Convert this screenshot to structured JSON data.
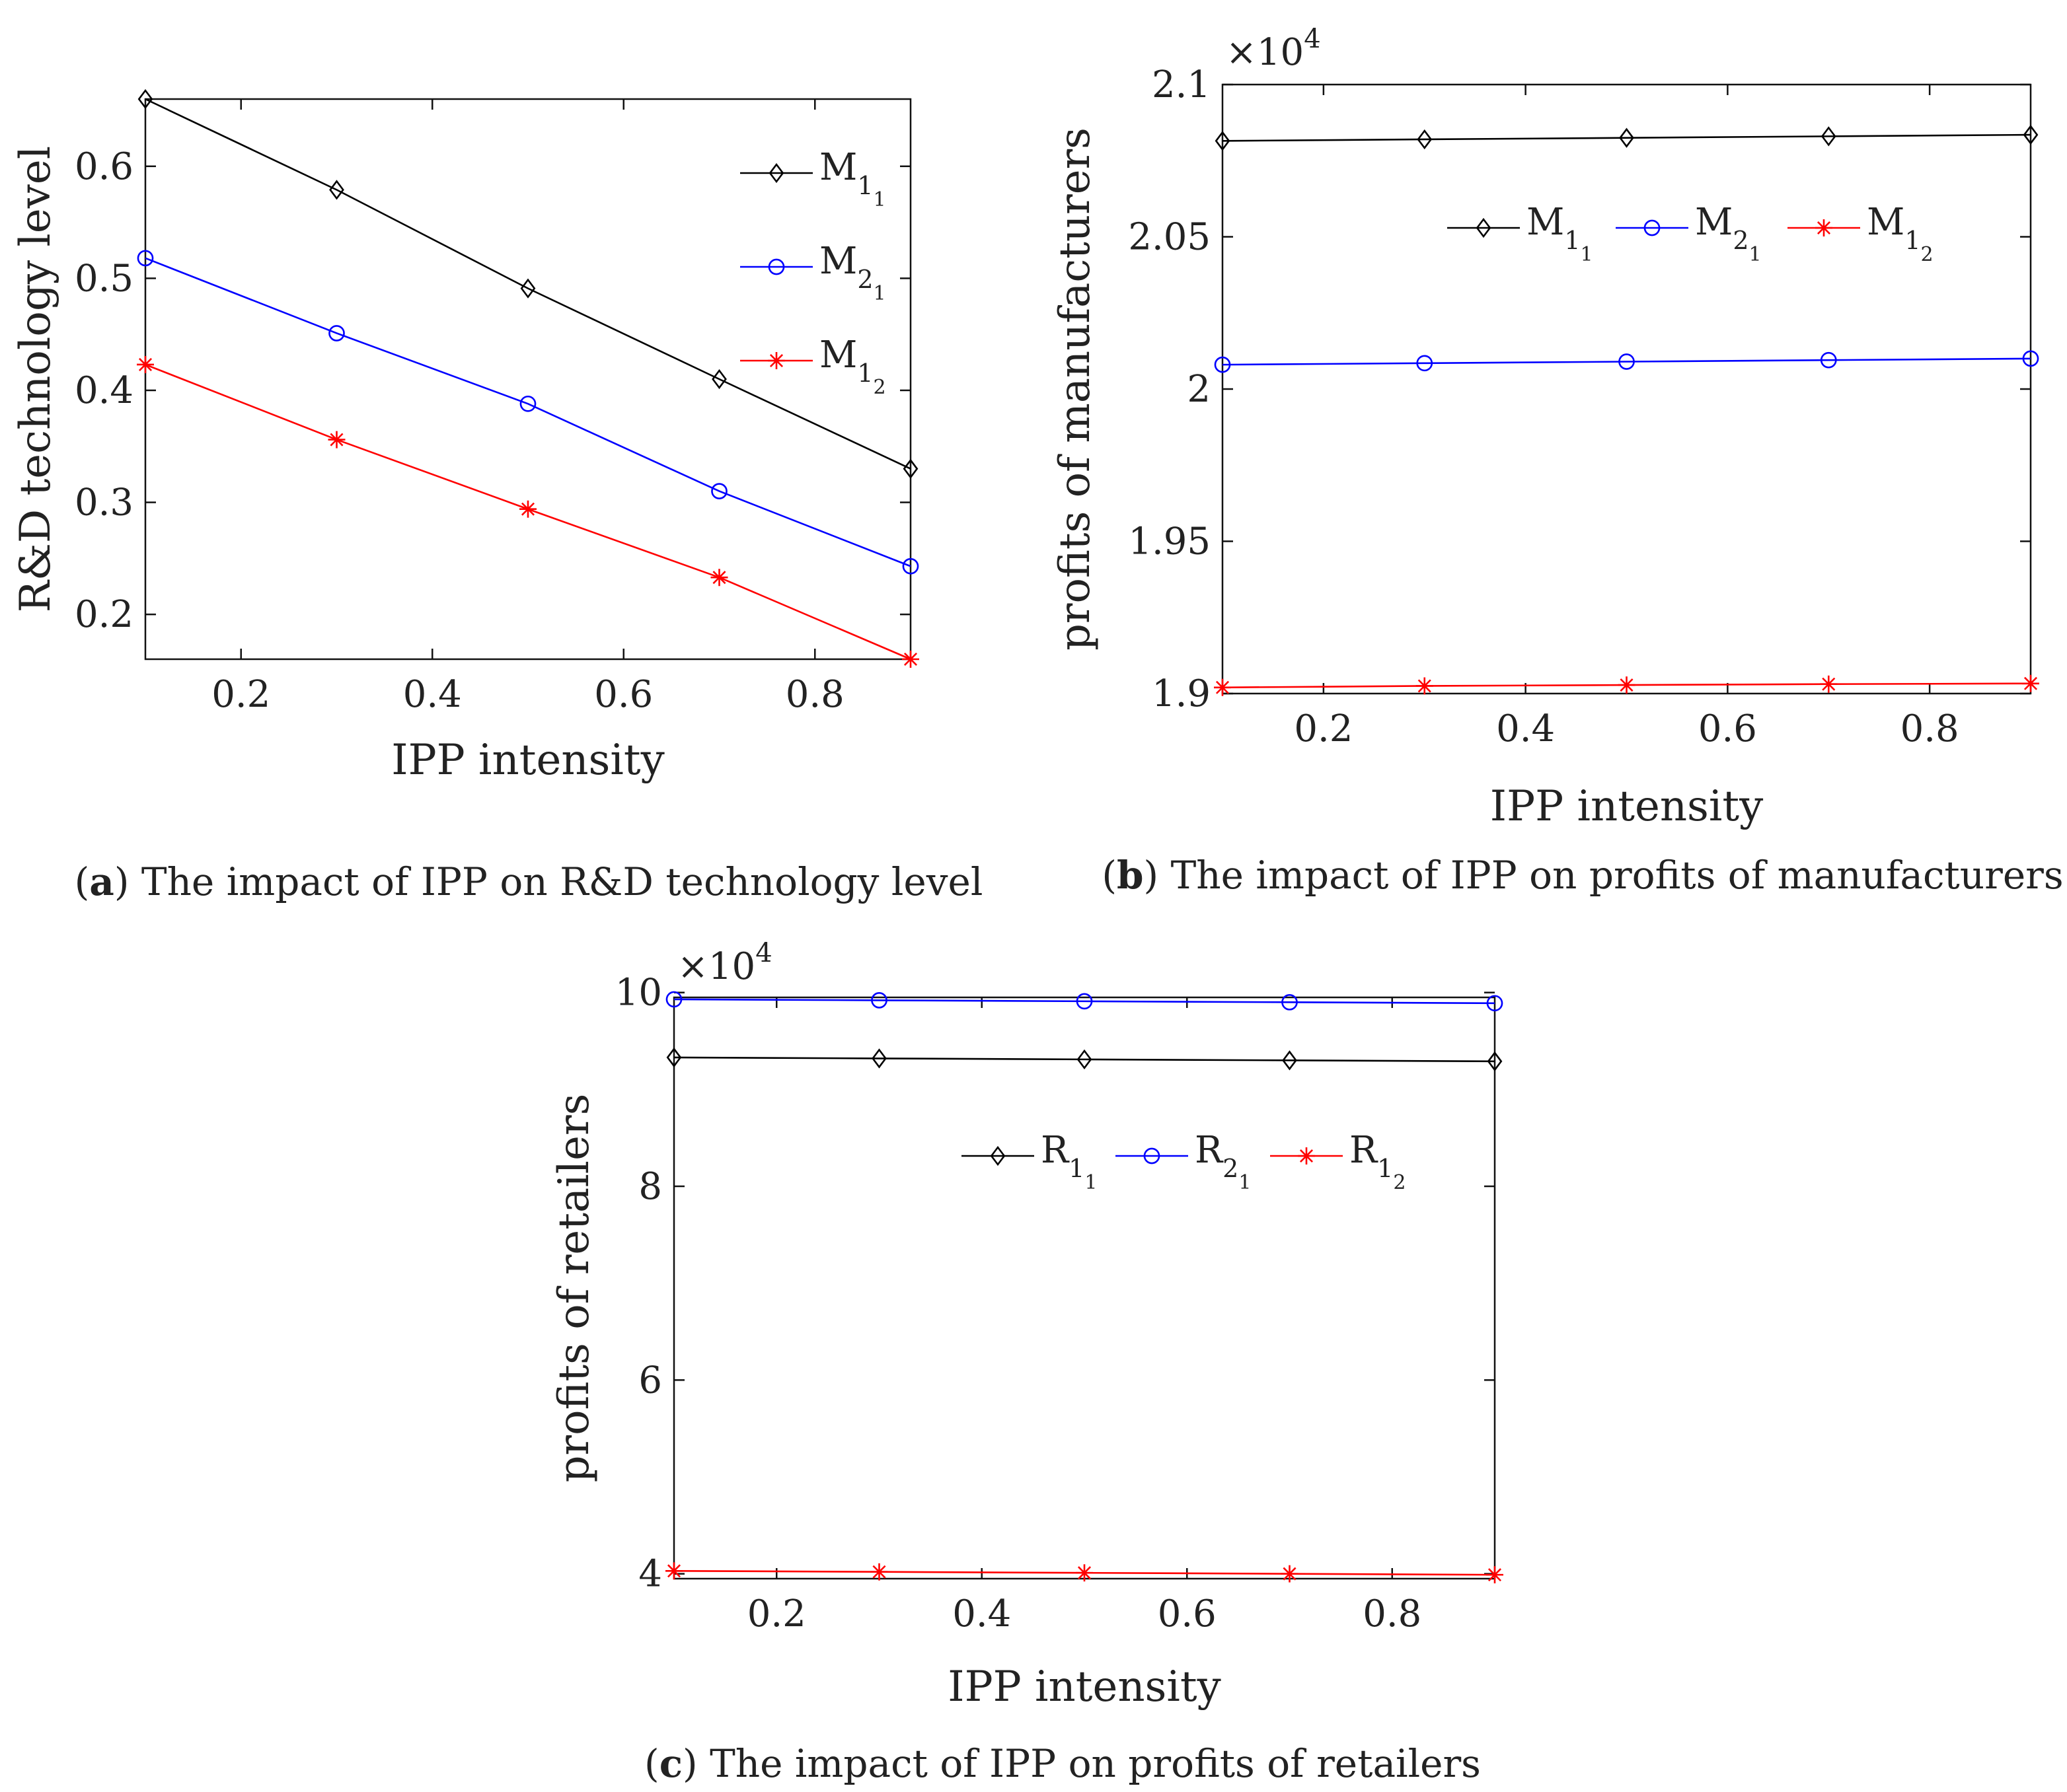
{
  "chart_data": [
    {
      "id": "a",
      "type": "line",
      "caption_letter": "a",
      "caption_text": "The impact of IPP on R&D technology level",
      "xlabel": "IPP intensity",
      "ylabel": "R&D technology level",
      "xlim": [
        0.1,
        0.9
      ],
      "ylim": [
        0.16,
        0.66
      ],
      "xticks": [
        0.2,
        0.4,
        0.6,
        0.8
      ],
      "xtick_labels": [
        "0.2",
        "0.4",
        "0.6",
        "0.8"
      ],
      "yticks": [
        0.2,
        0.3,
        0.4,
        0.5,
        0.6
      ],
      "ytick_labels": [
        "0.2",
        "0.3",
        "0.4",
        "0.5",
        "0.6"
      ],
      "multiplier": null,
      "legend": "vertical-right",
      "x": [
        0.1,
        0.3,
        0.5,
        0.7,
        0.9
      ],
      "series": [
        {
          "name": "M",
          "sub1": "1",
          "sub2": "1",
          "marker": "diamond",
          "color": "#000000",
          "values": [
            0.66,
            0.579,
            0.491,
            0.41,
            0.33
          ]
        },
        {
          "name": "M",
          "sub1": "2",
          "sub2": "1",
          "marker": "circle",
          "color": "#0000ff",
          "values": [
            0.518,
            0.451,
            0.388,
            0.31,
            0.243
          ]
        },
        {
          "name": "M",
          "sub1": "1",
          "sub2": "2",
          "marker": "star",
          "color": "#ff0000",
          "values": [
            0.423,
            0.356,
            0.294,
            0.233,
            0.16
          ]
        }
      ]
    },
    {
      "id": "b",
      "type": "line",
      "caption_letter": "b",
      "caption_text": "The impact of IPP on profits of manufacturers",
      "xlabel": "IPP intensity",
      "ylabel": "profits of manufacturers",
      "xlim": [
        0.1,
        0.9
      ],
      "ylim": [
        1.9,
        2.1
      ],
      "xticks": [
        0.2,
        0.4,
        0.6,
        0.8
      ],
      "xtick_labels": [
        "0.2",
        "0.4",
        "0.6",
        "0.8"
      ],
      "yticks": [
        1.9,
        1.95,
        2.0,
        2.05,
        2.1
      ],
      "ytick_labels": [
        "1.9",
        "1.95",
        "2",
        "2.05",
        "2.1"
      ],
      "multiplier": {
        "base": "×10",
        "exp": "4"
      },
      "legend": "horizontal",
      "x": [
        0.1,
        0.3,
        0.5,
        0.7,
        0.9
      ],
      "series": [
        {
          "name": "M",
          "sub1": "1",
          "sub2": "1",
          "marker": "diamond",
          "color": "#000000",
          "values": [
            2.0815,
            2.082,
            2.0825,
            2.083,
            2.0835
          ]
        },
        {
          "name": "M",
          "sub1": "2",
          "sub2": "1",
          "marker": "circle",
          "color": "#0000ff",
          "values": [
            2.008,
            2.0085,
            2.009,
            2.0095,
            2.01
          ]
        },
        {
          "name": "M",
          "sub1": "1",
          "sub2": "2",
          "marker": "star",
          "color": "#ff0000",
          "values": [
            1.902,
            1.9025,
            1.9028,
            1.9031,
            1.9033
          ]
        }
      ]
    },
    {
      "id": "c",
      "type": "line",
      "caption_letter": "c",
      "caption_text": "The impact of IPP on profits of retailers",
      "xlabel": "IPP intensity",
      "ylabel": "profits of retailers",
      "xlim": [
        0.1,
        0.9
      ],
      "ylim": [
        3.95,
        9.95
      ],
      "xticks": [
        0.2,
        0.4,
        0.6,
        0.8
      ],
      "xtick_labels": [
        "0.2",
        "0.4",
        "0.6",
        "0.8"
      ],
      "yticks": [
        4,
        6,
        8,
        10
      ],
      "ytick_labels": [
        "4",
        "6",
        "8",
        "10"
      ],
      "multiplier": {
        "base": "×10",
        "exp": "4"
      },
      "legend": "horizontal",
      "x": [
        0.1,
        0.3,
        0.5,
        0.7,
        0.9
      ],
      "series": [
        {
          "name": "R",
          "sub1": "1",
          "sub2": "1",
          "marker": "diamond",
          "color": "#000000",
          "values": [
            9.33,
            9.32,
            9.31,
            9.3,
            9.29
          ]
        },
        {
          "name": "R",
          "sub1": "2",
          "sub2": "1",
          "marker": "circle",
          "color": "#0000ff",
          "values": [
            9.93,
            9.92,
            9.91,
            9.9,
            9.89
          ]
        },
        {
          "name": "R",
          "sub1": "1",
          "sub2": "2",
          "marker": "star",
          "color": "#ff0000",
          "values": [
            4.03,
            4.02,
            4.01,
            4.0,
            3.99
          ]
        }
      ]
    }
  ]
}
